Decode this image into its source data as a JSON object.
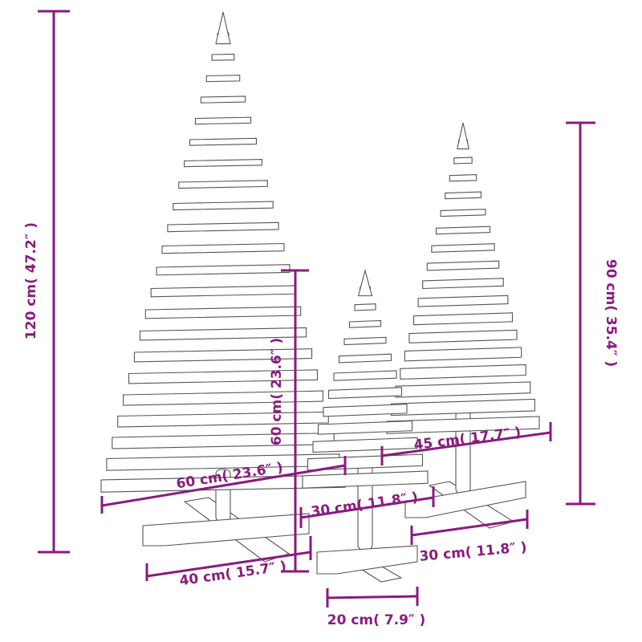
{
  "dimension_color": "#8b1a7e",
  "labels": {
    "large_height": "120 cm( 47.2″ )",
    "large_width": "60 cm( 23.6″ )",
    "large_base": "40 cm( 15.7″ )",
    "small_height": "60 cm( 23.6″ )",
    "small_width": "30 cm( 11.8″ )",
    "small_base": "20 cm( 7.9″ )",
    "medium_width": "45 cm( 17.7″ )",
    "medium_base": "30 cm( 11.8″ )",
    "medium_height": "90 cm( 35.4″ )"
  }
}
